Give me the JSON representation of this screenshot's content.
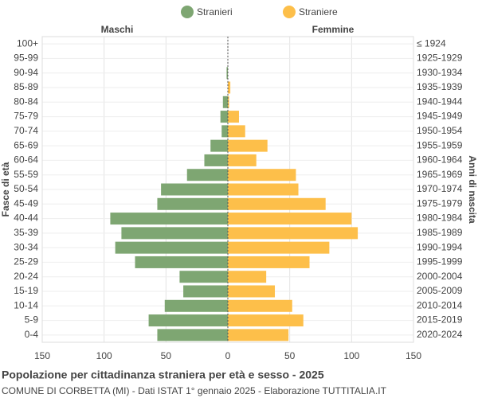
{
  "chart_data": {
    "type": "pyramid",
    "title": "Popolazione per cittadinanza straniera per età e sesso - 2025",
    "subtitle": "COMUNE DI CORBETTA (MI) - Dati ISTAT 1° gennaio 2025 - Elaborazione TUTTITALIA.IT",
    "left_label": "Maschi",
    "right_label": "Femmine",
    "y_label": "Fasce di età",
    "y2_label": "Anni di nascita",
    "categories": [
      "100+",
      "95-99",
      "90-94",
      "85-89",
      "80-84",
      "75-79",
      "70-74",
      "65-69",
      "60-64",
      "55-59",
      "50-54",
      "45-49",
      "40-44",
      "35-39",
      "30-34",
      "25-29",
      "20-24",
      "15-19",
      "10-14",
      "5-9",
      "0-4"
    ],
    "birth_years": [
      "≤ 1924",
      "1925-1929",
      "1930-1934",
      "1935-1939",
      "1940-1944",
      "1945-1949",
      "1950-1954",
      "1955-1959",
      "1960-1964",
      "1965-1969",
      "1970-1974",
      "1975-1979",
      "1980-1984",
      "1985-1989",
      "1990-1994",
      "1995-1999",
      "2000-2004",
      "2005-2009",
      "2010-2014",
      "2015-2019",
      "2020-2024"
    ],
    "series": [
      {
        "name": "Stranieri",
        "color": "#7ea672",
        "values": [
          0,
          0,
          1,
          0,
          4,
          6,
          5,
          14,
          19,
          33,
          54,
          57,
          95,
          86,
          91,
          75,
          39,
          36,
          51,
          64,
          57
        ]
      },
      {
        "name": "Straniere",
        "color": "#fdbf4a",
        "values": [
          0,
          0,
          0,
          2,
          1,
          9,
          14,
          32,
          23,
          55,
          57,
          79,
          100,
          105,
          82,
          66,
          31,
          38,
          52,
          61,
          49
        ]
      }
    ],
    "xlim": [
      -150,
      150
    ],
    "xticks": [
      {
        "value": -150,
        "label": "150"
      },
      {
        "value": -100,
        "label": "100"
      },
      {
        "value": -50,
        "label": "50"
      },
      0,
      50,
      100,
      150
    ],
    "grid": true
  }
}
